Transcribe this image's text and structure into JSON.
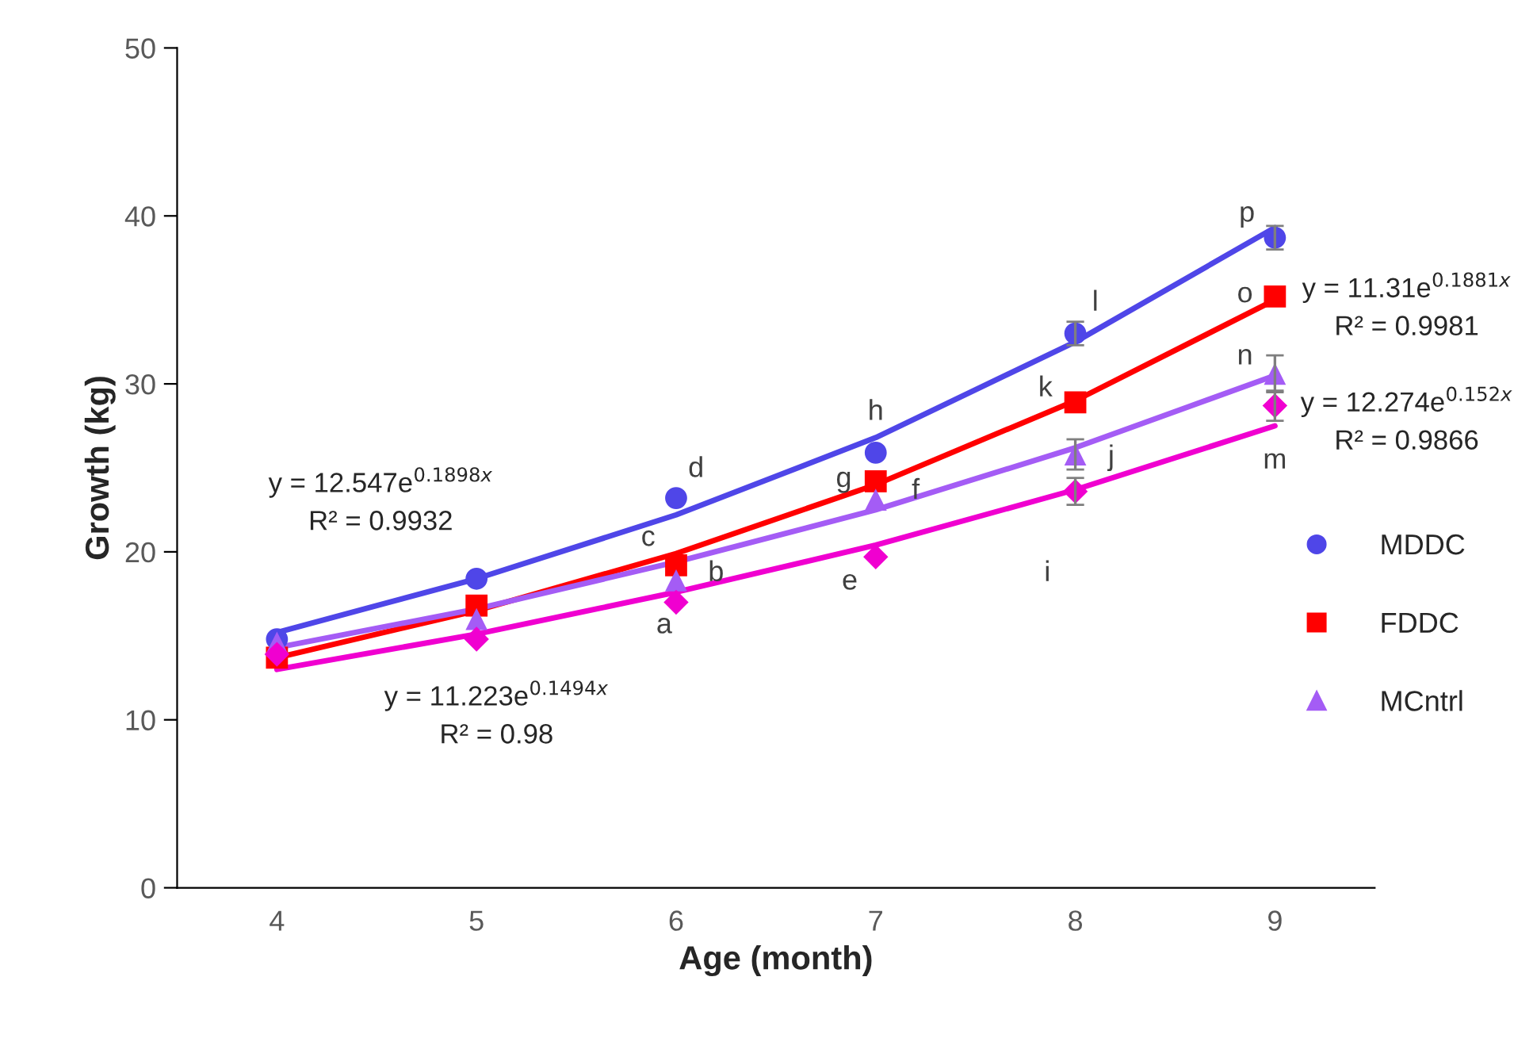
{
  "chart_data": {
    "type": "scatter",
    "xlabel": "Age (month)",
    "ylabel": "Growth (kg)",
    "categories": [
      "4",
      "5",
      "6",
      "7",
      "8",
      "9"
    ],
    "ylim": [
      0,
      50
    ],
    "yticks": [
      0,
      10,
      20,
      30,
      40,
      50
    ],
    "grid": false,
    "legend": "right",
    "series": [
      {
        "type": "line",
        "color": "#4f46e8",
        "marker": "none",
        "line_style": "solid",
        "values": [
          15.2,
          18.4,
          22.2,
          26.8,
          32.5,
          39.3
        ]
      },
      {
        "type": "line",
        "color": "#ff0000",
        "marker": "none",
        "line_style": "solid",
        "values": [
          13.7,
          16.5,
          19.9,
          24.0,
          29.0,
          35.0
        ]
      },
      {
        "type": "line",
        "color": "#a45cf5",
        "marker": "none",
        "line_style": "solid",
        "values": [
          14.3,
          16.6,
          19.4,
          22.5,
          26.2,
          30.5
        ]
      },
      {
        "type": "line",
        "color": "#f000d0",
        "marker": "none",
        "line_style": "solid",
        "values": [
          13.0,
          15.1,
          17.6,
          20.4,
          23.7,
          27.5
        ]
      },
      {
        "name": "MDDC",
        "color": "#4f46e8",
        "marker": "circle",
        "values": [
          14.8,
          18.4,
          23.2,
          25.9,
          33.0,
          38.7
        ],
        "errors": [
          null,
          null,
          null,
          null,
          0.7,
          0.7
        ]
      },
      {
        "name": "FDDC",
        "color": "#ff0000",
        "marker": "square",
        "values": [
          13.7,
          16.8,
          19.2,
          24.2,
          28.9,
          35.2
        ]
      },
      {
        "name": "MCntrl",
        "color": "#a45cf5",
        "marker": "triangle",
        "values": [
          14.6,
          16.0,
          18.3,
          23.1,
          25.8,
          30.6
        ],
        "errors": [
          null,
          null,
          null,
          null,
          0.9,
          1.1
        ]
      },
      {
        "color": "#f000d0",
        "marker": "diamond",
        "values": [
          13.9,
          14.8,
          17.0,
          19.7,
          23.6,
          28.7
        ],
        "errors": [
          null,
          null,
          null,
          null,
          0.8,
          0.9
        ]
      }
    ],
    "annotations": [
      "y = 12.547e$^{0.1898x}$\nR² = 0.9932",
      "y = 11.223e$^{0.1494x}$\nR² = 0.98",
      "y = 11.31e$^{0.1881x}$\nR² = 0.9981",
      "y = 12.274e$^{0.152x}$\nR² = 0.9866",
      "a",
      "b",
      "c",
      "d",
      "e",
      "f",
      "g",
      "h",
      "i",
      "j",
      "k",
      "l",
      "m",
      "n",
      "o",
      "p"
    ]
  }
}
